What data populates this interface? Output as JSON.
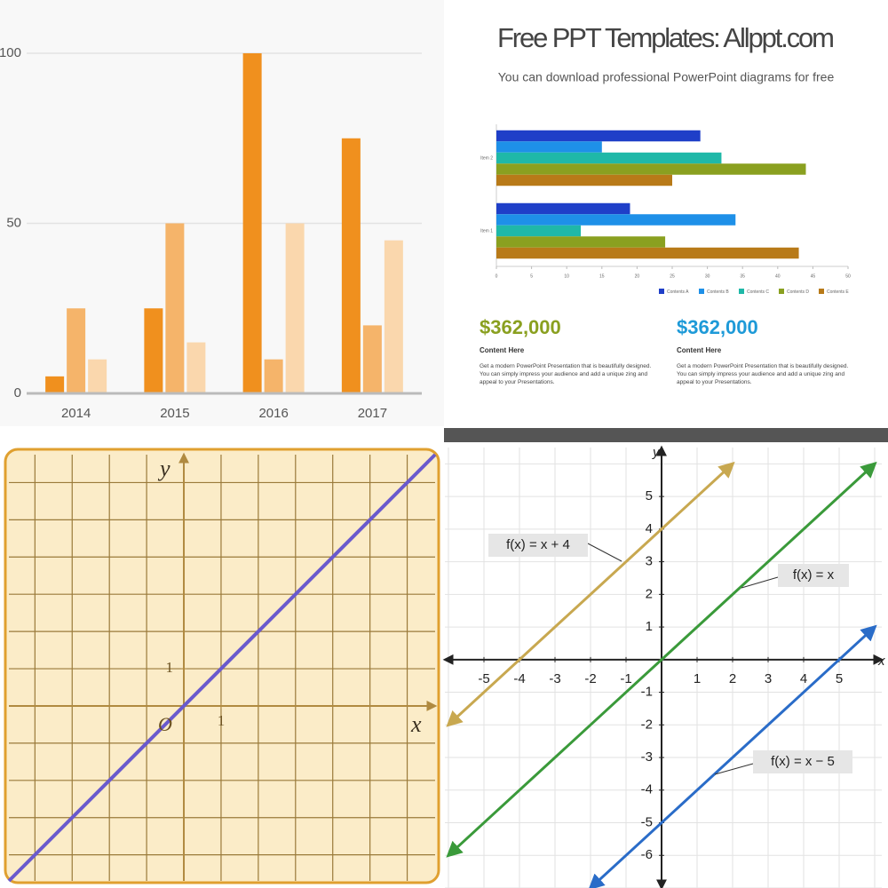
{
  "chart_data": [
    {
      "type": "bar",
      "categories": [
        "2014",
        "2015",
        "2016",
        "2017"
      ],
      "series": [
        {
          "color": "#f0901e",
          "values": [
            5,
            25,
            100,
            75
          ]
        },
        {
          "color": "#f5b46a",
          "values": [
            25,
            50,
            10,
            20
          ]
        },
        {
          "color": "#fad7ad",
          "values": [
            10,
            15,
            50,
            45
          ]
        }
      ],
      "ylim": [
        0,
        100
      ],
      "yticks": [
        0,
        50,
        100
      ],
      "grid": true
    },
    {
      "type": "hbar",
      "title": "Free PPT Templates: Allppt.com",
      "subtitle": "You can download professional PowerPoint diagrams for free",
      "categories": [
        "Item 1",
        "Item 2"
      ],
      "series": [
        {
          "name": "Contents A",
          "color": "#1f3fc8",
          "values": [
            19,
            29
          ]
        },
        {
          "name": "Contents B",
          "color": "#1e90e8",
          "values": [
            34,
            15
          ]
        },
        {
          "name": "Contents C",
          "color": "#1fb8a8",
          "values": [
            12,
            32
          ]
        },
        {
          "name": "Contents D",
          "color": "#8aa020",
          "values": [
            24,
            44
          ]
        },
        {
          "name": "Contents E",
          "color": "#b87a18",
          "values": [
            43,
            25
          ]
        }
      ],
      "xlim": [
        0,
        50
      ],
      "xticks": [
        0,
        5,
        10,
        15,
        20,
        25,
        30,
        35,
        40,
        45,
        50
      ],
      "legend": "bottom-right",
      "panels": [
        {
          "amount": "$362,000",
          "color": "#8aa020",
          "heading": "Content Here",
          "text": "Get a modern PowerPoint Presentation that is beautifully designed. You can simply impress your audience and add a unique zing and appeal to your Presentations."
        },
        {
          "amount": "$362,000",
          "color": "#1e9ad8",
          "heading": "Content Here",
          "text": "Get a modern PowerPoint Presentation that is beautifully designed. You can simply impress your audience and add a unique zing and appeal to your Presentations."
        }
      ]
    },
    {
      "type": "line",
      "x_label": "x",
      "y_label": "y",
      "origin_label": "O",
      "x": [
        -4.7,
        6.75
      ],
      "series": [
        {
          "color": "#6a5acd",
          "values": [
            -4.7,
            6.75
          ]
        }
      ],
      "xlim": [
        -4.7,
        6.75
      ],
      "ylim": [
        -4.7,
        6.75
      ],
      "xticks": [
        1
      ],
      "yticks": [
        1
      ],
      "grid": true
    },
    {
      "type": "line",
      "x_label": "x",
      "y_label": "y",
      "x": [
        -6,
        -2,
        2,
        6
      ],
      "series": [
        {
          "name": "f(x) = x + 4",
          "color": "#c8a850",
          "values": [
            -2,
            2,
            6,
            null
          ]
        },
        {
          "name": "f(x) = x",
          "color": "#3a9a3a",
          "values": [
            -6,
            -2,
            2,
            6
          ]
        },
        {
          "name": "f(x) = x − 5",
          "color": "#2a6cc8",
          "values": [
            null,
            -7,
            -3,
            1
          ]
        }
      ],
      "xlim": [
        -6.1,
        6.2
      ],
      "ylim": [
        -7,
        6.5
      ],
      "xticks": [
        -5,
        -4,
        -3,
        -2,
        -1,
        1,
        2,
        3,
        4,
        5
      ],
      "yticks": [
        -6,
        -5,
        -4,
        -3,
        -2,
        -1,
        1,
        2,
        3,
        4,
        5
      ],
      "grid": true
    }
  ]
}
